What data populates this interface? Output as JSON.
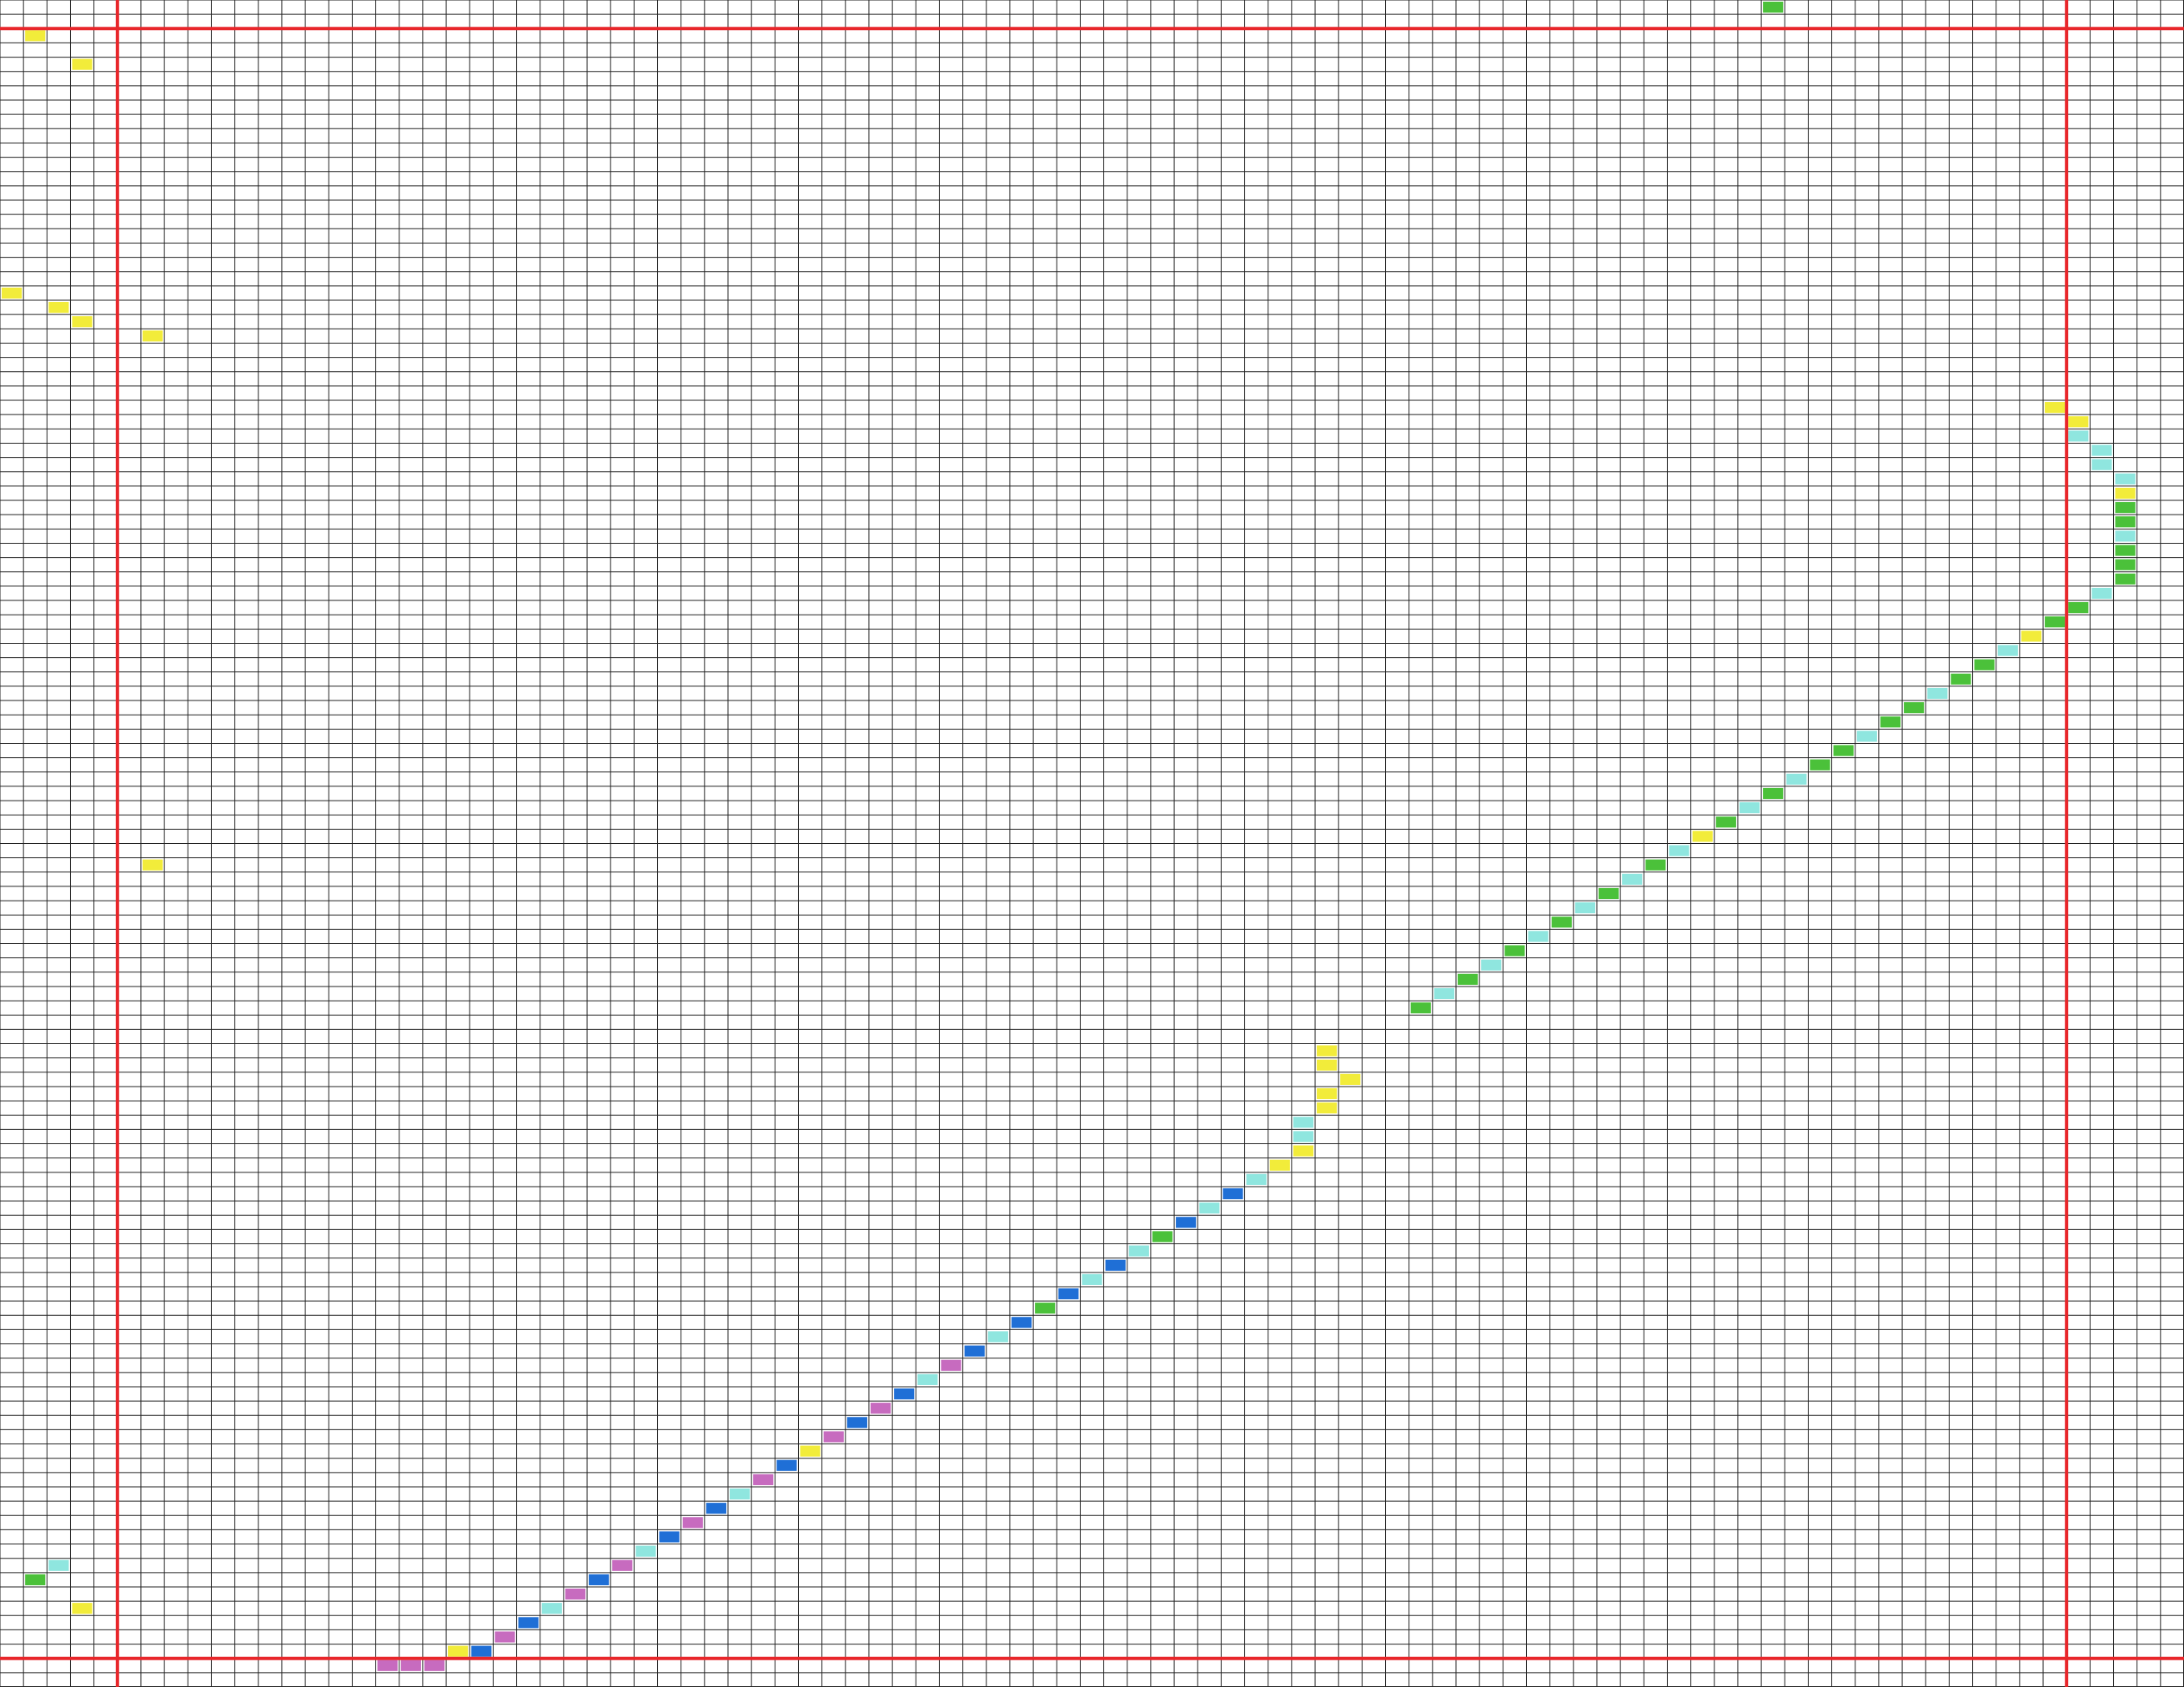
{
  "grid": {
    "palette": [
      "#f2ec3a",
      "#8fe6df",
      "#4bc13a",
      "#1f6fd6",
      "#c76bbf"
    ],
    "highlights": [
      [
        116,
        16,
        4
      ],
      [
        116,
        17,
        4
      ],
      [
        116,
        18,
        4
      ],
      [
        115,
        19,
        0
      ],
      [
        115,
        20,
        3
      ],
      [
        114,
        21,
        4
      ],
      [
        113,
        22,
        3
      ],
      [
        112,
        23,
        1
      ],
      [
        111,
        24,
        4
      ],
      [
        110,
        25,
        3
      ],
      [
        109,
        26,
        4
      ],
      [
        108,
        27,
        1
      ],
      [
        107,
        28,
        3
      ],
      [
        106,
        29,
        4
      ],
      [
        105,
        30,
        3
      ],
      [
        104,
        31,
        1
      ],
      [
        103,
        32,
        4
      ],
      [
        102,
        33,
        3
      ],
      [
        101,
        34,
        0
      ],
      [
        100,
        35,
        4
      ],
      [
        99,
        36,
        3
      ],
      [
        98,
        37,
        4
      ],
      [
        97,
        38,
        3
      ],
      [
        96,
        39,
        1
      ],
      [
        95,
        40,
        4
      ],
      [
        94,
        41,
        3
      ],
      [
        93,
        42,
        1
      ],
      [
        92,
        43,
        3
      ],
      [
        91,
        44,
        2
      ],
      [
        90,
        45,
        3
      ],
      [
        89,
        46,
        1
      ],
      [
        88,
        47,
        3
      ],
      [
        87,
        48,
        1
      ],
      [
        86,
        49,
        2
      ],
      [
        85,
        50,
        3
      ],
      [
        84,
        51,
        1
      ],
      [
        83,
        52,
        3
      ],
      [
        82,
        53,
        1
      ],
      [
        81,
        54,
        0
      ],
      [
        80,
        55,
        0
      ],
      [
        79,
        55,
        1
      ],
      [
        78,
        55,
        1
      ],
      [
        77,
        56,
        0
      ],
      [
        76,
        56,
        0
      ],
      [
        75,
        57,
        0
      ],
      [
        74,
        56,
        0
      ],
      [
        73,
        56,
        0
      ],
      [
        70,
        60,
        2
      ],
      [
        69,
        61,
        1
      ],
      [
        68,
        62,
        2
      ],
      [
        67,
        63,
        1
      ],
      [
        66,
        64,
        2
      ],
      [
        65,
        65,
        1
      ],
      [
        64,
        66,
        2
      ],
      [
        63,
        67,
        1
      ],
      [
        62,
        68,
        2
      ],
      [
        61,
        69,
        1
      ],
      [
        60,
        70,
        2
      ],
      [
        59,
        71,
        1
      ],
      [
        58,
        72,
        0
      ],
      [
        57,
        73,
        2
      ],
      [
        56,
        74,
        1
      ],
      [
        55,
        75,
        2
      ],
      [
        54,
        76,
        1
      ],
      [
        53,
        77,
        2
      ],
      [
        52,
        78,
        2
      ],
      [
        51,
        79,
        1
      ],
      [
        50,
        80,
        2
      ],
      [
        49,
        81,
        2
      ],
      [
        48,
        82,
        1
      ],
      [
        47,
        83,
        2
      ],
      [
        46,
        84,
        2
      ],
      [
        45,
        85,
        1
      ],
      [
        44,
        86,
        0
      ],
      [
        43,
        87,
        2
      ],
      [
        42,
        88,
        2
      ],
      [
        41,
        89,
        1
      ],
      [
        40,
        90,
        2
      ],
      [
        39,
        90,
        2
      ],
      [
        38,
        90,
        2
      ],
      [
        37,
        90,
        1
      ],
      [
        36,
        90,
        2
      ],
      [
        35,
        90,
        2
      ],
      [
        34,
        90,
        0
      ],
      [
        33,
        90,
        1
      ],
      [
        32,
        89,
        1
      ],
      [
        31,
        89,
        1
      ],
      [
        30,
        88,
        1
      ],
      [
        29,
        88,
        0
      ],
      [
        28,
        87,
        0
      ],
      [
        2,
        1,
        0
      ],
      [
        4,
        3,
        0
      ],
      [
        20,
        0,
        0
      ],
      [
        21,
        2,
        0
      ],
      [
        22,
        3,
        0
      ],
      [
        23,
        6,
        0
      ],
      [
        60,
        6,
        0
      ],
      [
        110,
        1,
        2
      ],
      [
        109,
        2,
        1
      ],
      [
        112,
        3,
        0
      ],
      [
        0,
        75,
        2
      ]
    ]
  }
}
